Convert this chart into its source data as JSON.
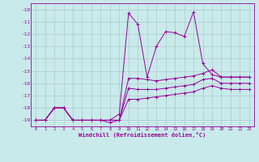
{
  "xlabel": "Windchill (Refroidissement éolien,°C)",
  "background_color": "#c8eaea",
  "grid_color": "#b0c8c8",
  "line_color": "#990099",
  "x_ticks": [
    0,
    1,
    2,
    3,
    4,
    5,
    6,
    7,
    8,
    9,
    10,
    11,
    12,
    13,
    14,
    15,
    16,
    17,
    18,
    19,
    20,
    21,
    22,
    23
  ],
  "y_ticks": [
    -10,
    -11,
    -12,
    -13,
    -14,
    -15,
    -16,
    -17,
    -18,
    -19
  ],
  "ylim": [
    -19.5,
    -9.5
  ],
  "xlim": [
    -0.5,
    23.5
  ],
  "series1_x": [
    0,
    1,
    2,
    3,
    4,
    5,
    6,
    7,
    8,
    9,
    10,
    11,
    12,
    13,
    14,
    15,
    16,
    17,
    18,
    19,
    20,
    21,
    22,
    23
  ],
  "series1_y": [
    -19.0,
    -19.0,
    -18.0,
    -18.0,
    -19.0,
    -19.0,
    -19.0,
    -19.0,
    -19.0,
    -18.5,
    -10.3,
    -11.2,
    -15.5,
    -13.0,
    -11.8,
    -11.9,
    -12.2,
    -10.2,
    -14.4,
    -15.3,
    -15.5,
    -15.5,
    -15.5,
    -15.5
  ],
  "series2_x": [
    0,
    1,
    2,
    3,
    4,
    5,
    6,
    7,
    8,
    9,
    10,
    11,
    12,
    13,
    14,
    15,
    16,
    17,
    18,
    19,
    20,
    21,
    22,
    23
  ],
  "series2_y": [
    -19.0,
    -19.0,
    -18.0,
    -18.0,
    -19.0,
    -19.0,
    -19.0,
    -19.0,
    -19.2,
    -19.0,
    -15.6,
    -15.6,
    -15.7,
    -15.8,
    -15.7,
    -15.6,
    -15.5,
    -15.4,
    -15.2,
    -14.9,
    -15.5,
    -15.5,
    -15.5,
    -15.5
  ],
  "series3_x": [
    0,
    1,
    2,
    3,
    4,
    5,
    6,
    7,
    8,
    9,
    10,
    11,
    12,
    13,
    14,
    15,
    16,
    17,
    18,
    19,
    20,
    21,
    22,
    23
  ],
  "series3_y": [
    -19.0,
    -19.0,
    -18.0,
    -18.0,
    -19.0,
    -19.0,
    -19.0,
    -19.0,
    -19.0,
    -19.0,
    -16.4,
    -16.5,
    -16.5,
    -16.5,
    -16.4,
    -16.3,
    -16.2,
    -16.1,
    -15.7,
    -15.6,
    -16.0,
    -16.0,
    -16.0,
    -16.0
  ],
  "series4_x": [
    0,
    1,
    2,
    3,
    4,
    5,
    6,
    7,
    8,
    9,
    10,
    11,
    12,
    13,
    14,
    15,
    16,
    17,
    18,
    19,
    20,
    21,
    22,
    23
  ],
  "series4_y": [
    -19.0,
    -19.0,
    -18.0,
    -18.0,
    -19.0,
    -19.0,
    -19.0,
    -19.0,
    -19.0,
    -19.0,
    -17.3,
    -17.3,
    -17.2,
    -17.1,
    -17.0,
    -16.9,
    -16.8,
    -16.7,
    -16.4,
    -16.2,
    -16.4,
    -16.5,
    -16.5,
    -16.5
  ]
}
